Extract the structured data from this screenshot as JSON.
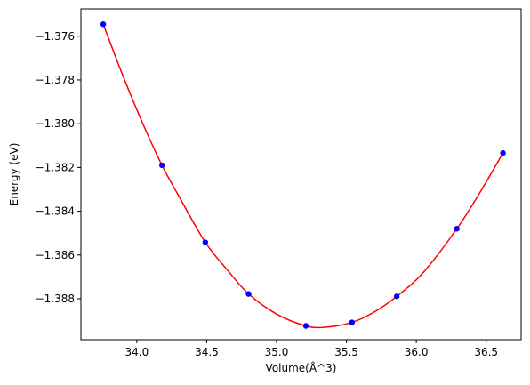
{
  "chart_data": {
    "type": "scatter",
    "title": "",
    "xlabel": "Volume(Å^3)",
    "ylabel": "Energy (eV)",
    "xlim": [
      33.6,
      36.75
    ],
    "ylim": [
      -1.38987,
      -1.37475
    ],
    "x_ticks": [
      34.0,
      34.5,
      35.0,
      35.5,
      36.0,
      36.5
    ],
    "x_tick_labels": [
      "34.0",
      "34.5",
      "35.0",
      "35.5",
      "36.0",
      "36.5"
    ],
    "y_ticks": [
      -1.376,
      -1.378,
      -1.38,
      -1.382,
      -1.384,
      -1.386,
      -1.388
    ],
    "y_tick_labels": [
      "−1.376",
      "−1.378",
      "−1.380",
      "−1.382",
      "−1.384",
      "−1.386",
      "−1.388"
    ],
    "grid": false,
    "legend": "none",
    "series": [
      {
        "kind": "points",
        "color": "#0000ff",
        "x": [
          33.76,
          34.18,
          34.49,
          34.8,
          35.21,
          35.54,
          35.86,
          36.29,
          36.62
        ],
        "y": [
          -1.37545,
          -1.3819,
          -1.38542,
          -1.38778,
          -1.38924,
          -1.38908,
          -1.38789,
          -1.3848,
          -1.38134
        ]
      },
      {
        "kind": "fit-curve",
        "color": "#ff0000",
        "x": [
          33.76,
          33.9,
          34.05,
          34.18,
          34.3,
          34.49,
          34.65,
          34.8,
          35.0,
          35.21,
          35.35,
          35.54,
          35.7,
          35.86,
          36.05,
          36.29,
          36.45,
          36.62
        ],
        "y": [
          -1.37545,
          -1.3778,
          -1.3801,
          -1.3819,
          -1.3833,
          -1.38542,
          -1.3867,
          -1.38778,
          -1.3887,
          -1.38924,
          -1.3893,
          -1.38908,
          -1.3886,
          -1.38789,
          -1.3868,
          -1.3848,
          -1.3832,
          -1.38134
        ]
      }
    ]
  }
}
